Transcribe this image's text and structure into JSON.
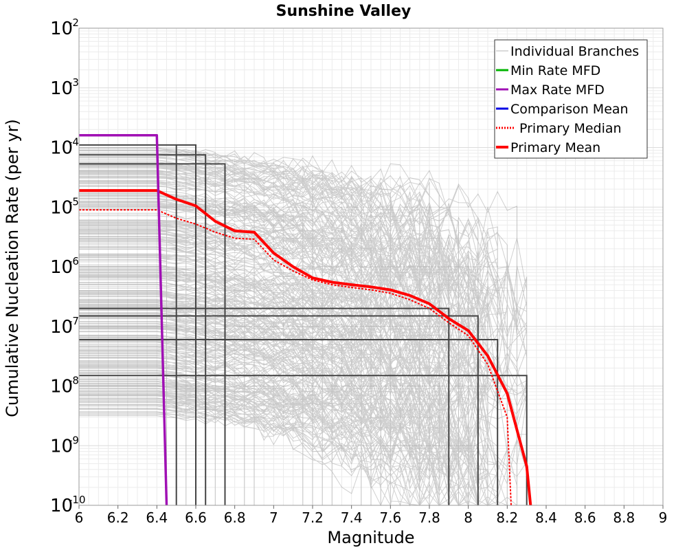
{
  "chart_data": {
    "type": "line",
    "title": "Sunshine Valley",
    "xlabel": "Magnitude",
    "ylabel": "Cumulative Nucleation Rate (per yr)",
    "xlim": [
      6,
      9
    ],
    "ylim": [
      1e-10,
      0.01
    ],
    "y_scale": "log",
    "grid": true,
    "legend_position": "top-right",
    "x_ticks": [
      "6",
      "6.2",
      "6.4",
      "6.6",
      "6.8",
      "7",
      "7.2",
      "7.4",
      "7.6",
      "7.8",
      "8",
      "8.2",
      "8.4",
      "8.6",
      "8.8",
      "9"
    ],
    "y_ticks": [
      {
        "base": "10",
        "exp": "-10"
      },
      {
        "base": "10",
        "exp": "-9"
      },
      {
        "base": "10",
        "exp": "-8"
      },
      {
        "base": "10",
        "exp": "-7"
      },
      {
        "base": "10",
        "exp": "-6"
      },
      {
        "base": "10",
        "exp": "-5"
      },
      {
        "base": "10",
        "exp": "-4"
      },
      {
        "base": "10",
        "exp": "-3"
      },
      {
        "base": "10",
        "exp": "-2"
      }
    ],
    "legend": [
      {
        "name": "Individual Branches",
        "color": "#b4b4b4",
        "style": "solid-thin"
      },
      {
        "name": "Min Rate MFD",
        "color": "#00b400",
        "style": "solid"
      },
      {
        "name": "Max Rate MFD",
        "color": "#a010b4",
        "style": "solid"
      },
      {
        "name": "Comparison Mean",
        "color": "#0000e6",
        "style": "solid"
      },
      {
        "name": "Primary Median",
        "color": "#ff0000",
        "style": "dotted"
      },
      {
        "name": "Primary Mean",
        "color": "#ff0000",
        "style": "solid-thick"
      }
    ],
    "series": [
      {
        "name": "Primary Mean",
        "color": "#ff0000",
        "x": [
          6.0,
          6.4,
          6.5,
          6.6,
          6.7,
          6.8,
          6.9,
          7.0,
          7.1,
          7.2,
          7.3,
          7.4,
          7.5,
          7.6,
          7.7,
          7.8,
          7.9,
          8.0,
          8.1,
          8.2,
          8.3,
          8.32
        ],
        "y": [
          1.9e-05,
          1.9e-05,
          1.35e-05,
          1.05e-05,
          5.8e-06,
          4e-06,
          3.8e-06,
          1.7e-06,
          1e-06,
          6.5e-07,
          5.5e-07,
          5e-07,
          4.6e-07,
          4.1e-07,
          3.3e-07,
          2.4e-07,
          1.35e-07,
          8.5e-08,
          3.2e-08,
          7.5e-09,
          4.5e-10,
          1e-10
        ]
      },
      {
        "name": "Primary Median",
        "color": "#ff0000",
        "x": [
          6.0,
          6.4,
          6.5,
          6.6,
          6.7,
          6.8,
          6.9,
          7.0,
          7.1,
          7.2,
          7.3,
          7.4,
          7.5,
          7.6,
          7.7,
          7.8,
          7.9,
          8.0,
          8.1,
          8.2,
          8.22
        ],
        "y": [
          9e-06,
          9e-06,
          6.5e-06,
          5.2e-06,
          3.8e-06,
          3e-06,
          2.9e-06,
          1.3e-06,
          8.5e-07,
          6e-07,
          5e-07,
          4.5e-07,
          4.1e-07,
          3.6e-07,
          2.8e-07,
          2e-07,
          1.15e-07,
          7e-08,
          2.3e-08,
          3e-09,
          1e-10
        ]
      },
      {
        "name": "Max Rate MFD",
        "color": "#a010b4",
        "x": [
          6.0,
          6.4,
          6.45
        ],
        "y": [
          0.00016,
          0.00016,
          1e-10
        ]
      }
    ]
  }
}
